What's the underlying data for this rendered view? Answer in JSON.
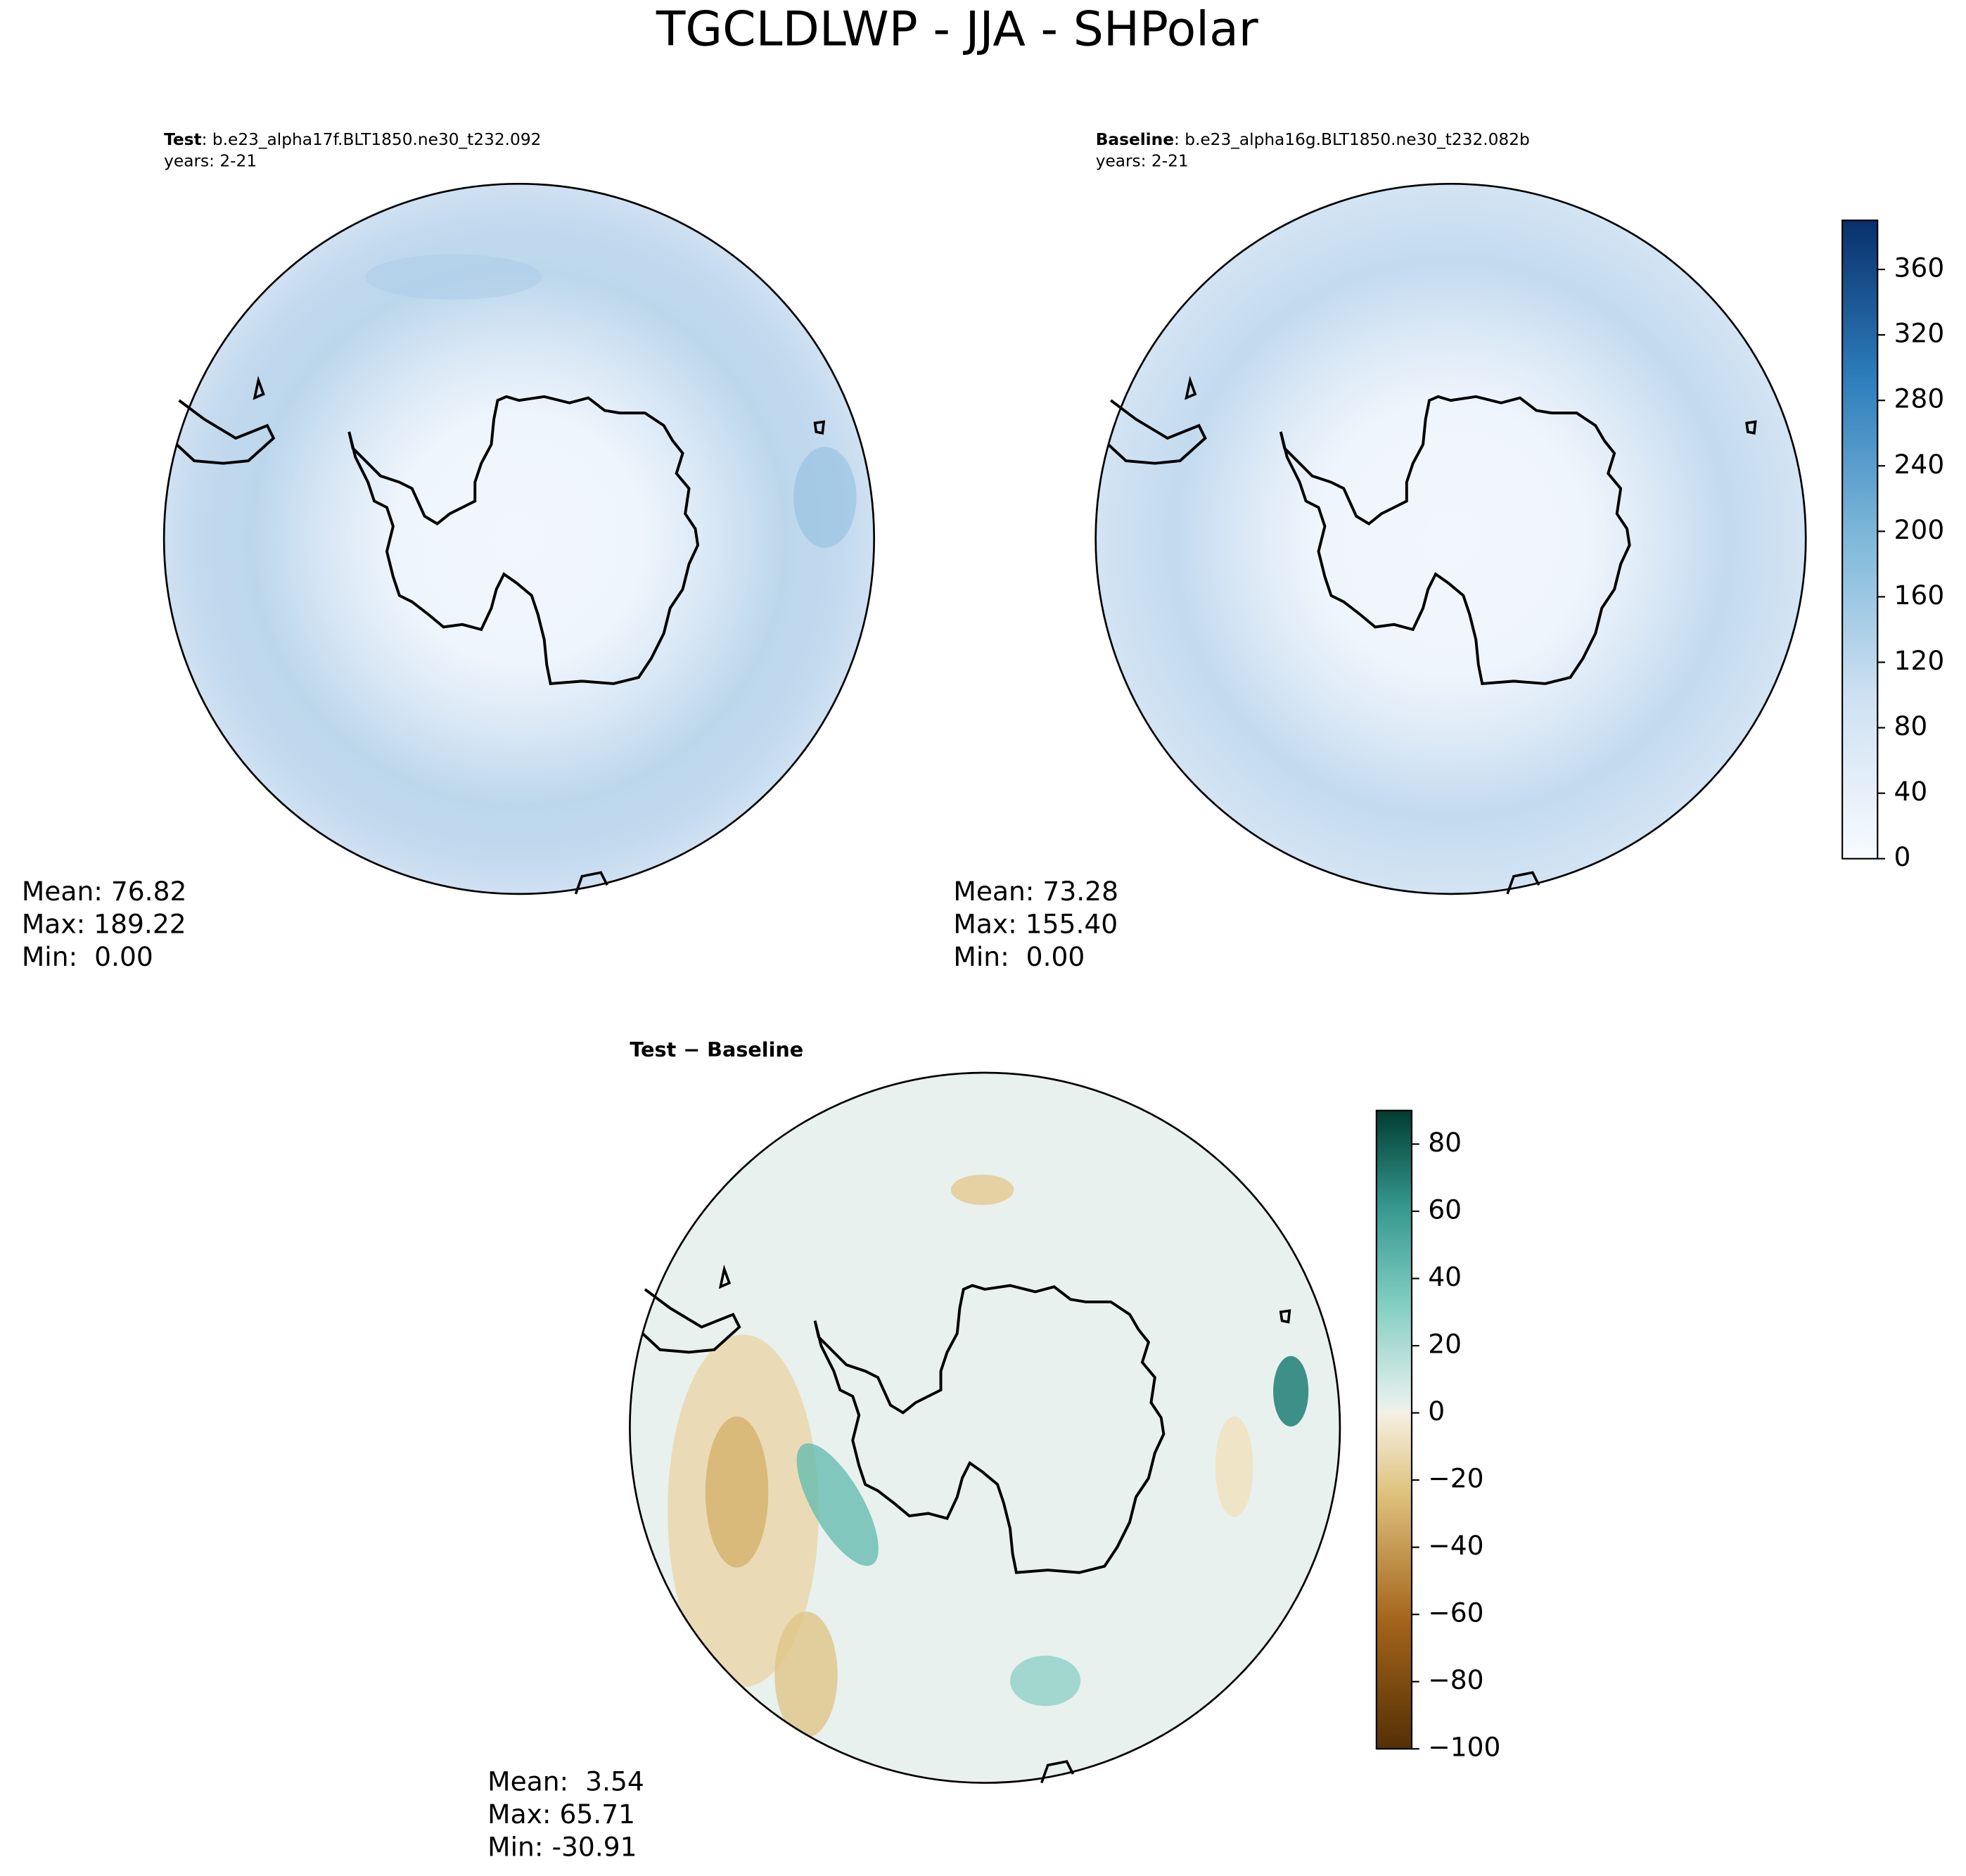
{
  "title": "TGCLDLWP - JJA - SHPolar",
  "panels": [
    {
      "label": "Test",
      "case": ": b.e23_alpha17f.BLT1850.ne30_t232.092",
      "years": "years: 2-21",
      "stats": [
        "Mean: 76.82",
        "Max: 189.22",
        "Min:  0.00"
      ]
    },
    {
      "label": "Baseline",
      "case": ": b.e23_alpha16g.BLT1850.ne30_t232.082b",
      "years": "years: 2-21",
      "stats": [
        "Mean: 73.28",
        "Max: 155.40",
        "Min:  0.00"
      ]
    },
    {
      "label": "Test − Baseline",
      "stats": [
        "Mean:  3.54",
        "Max: 65.71",
        "Min: -30.91"
      ]
    }
  ],
  "colorbars": [
    {
      "range": [
        0,
        390
      ],
      "ticks": [
        0,
        40,
        80,
        120,
        160,
        200,
        240,
        280,
        320,
        360
      ]
    },
    {
      "range": [
        -100,
        90
      ],
      "ticks": [
        {
          "value": -100,
          "label": "−100"
        },
        {
          "value": -80,
          "label": "−80"
        },
        {
          "value": -60,
          "label": "−60"
        },
        {
          "value": -40,
          "label": "−40"
        },
        {
          "value": -20,
          "label": "−20"
        },
        0,
        20,
        40,
        60,
        80
      ]
    }
  ]
}
